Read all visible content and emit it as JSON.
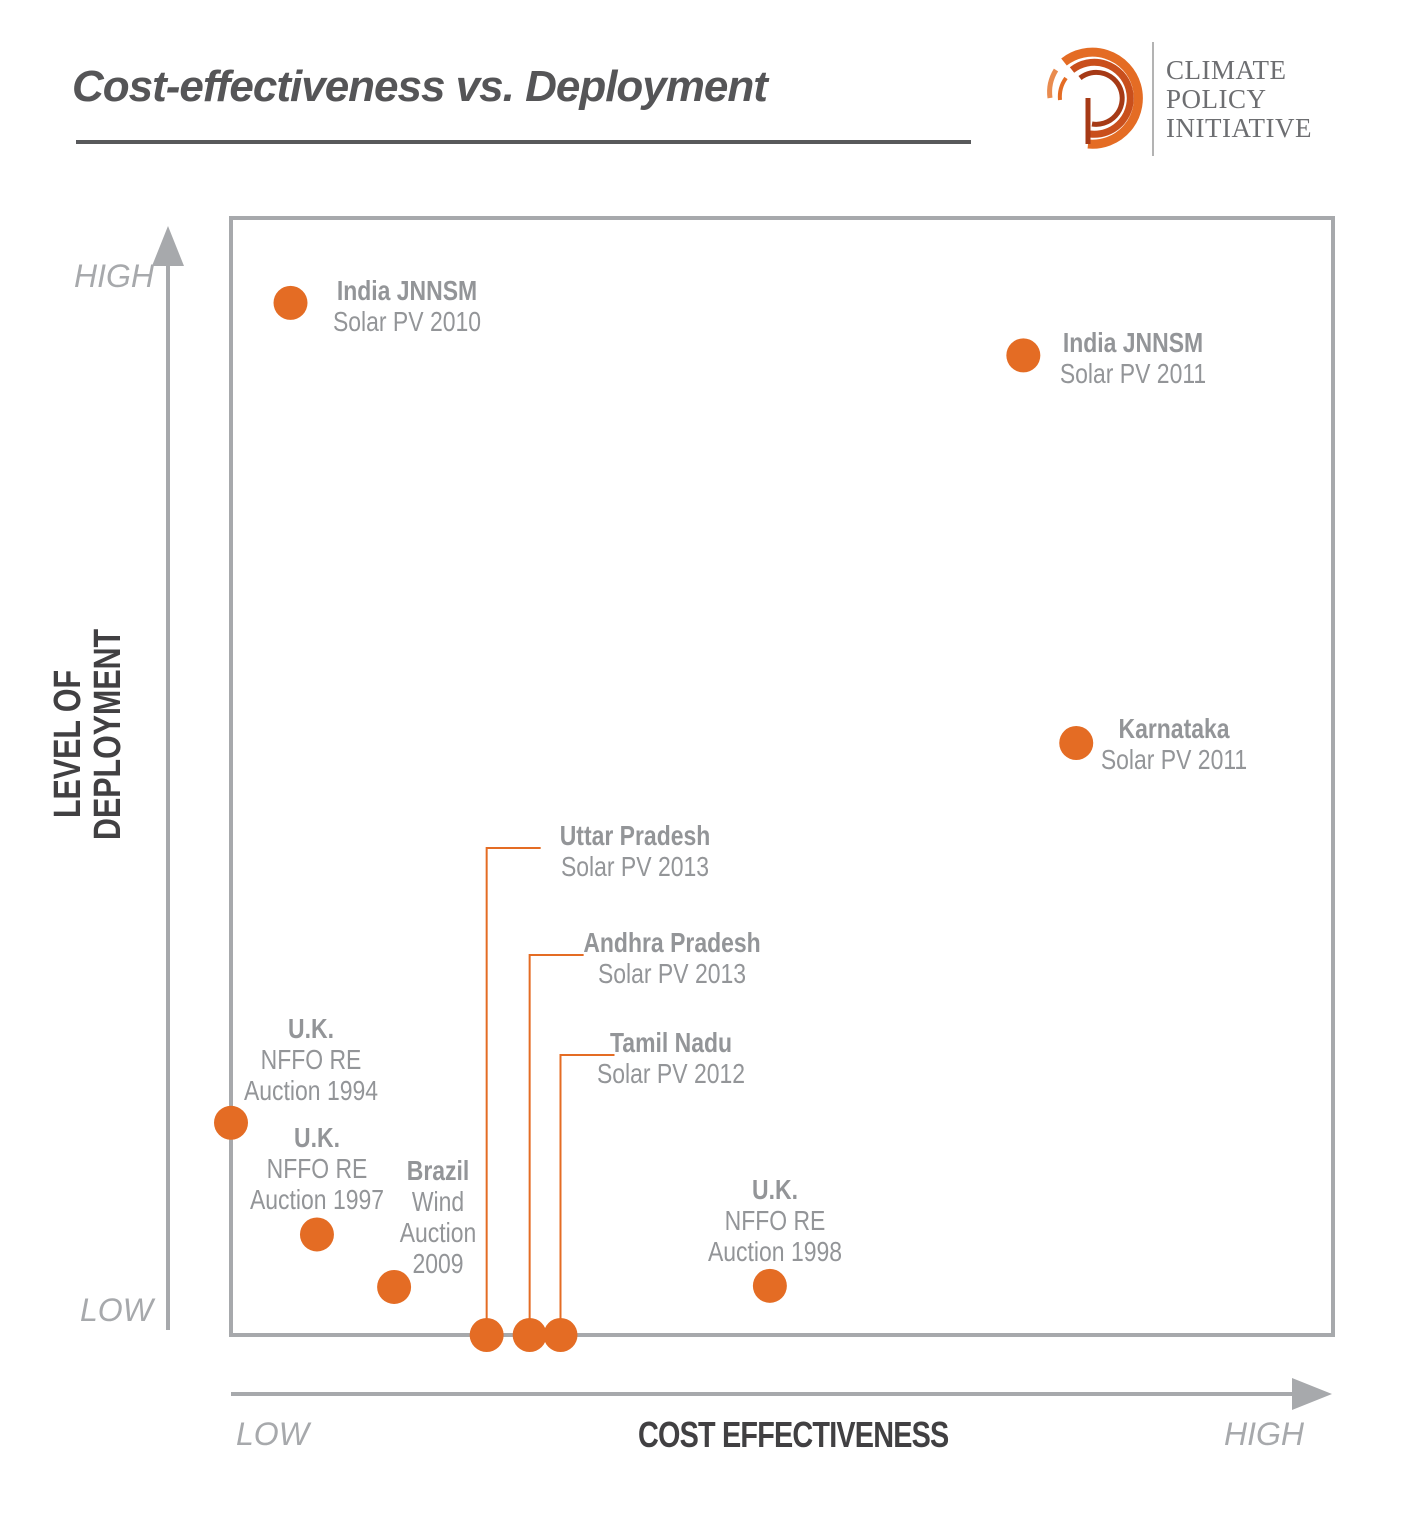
{
  "header": {
    "title": "Cost-effectiveness vs. Deployment"
  },
  "logo": {
    "lines": [
      "CLIMATE",
      "POLICY",
      "INITIATIVE"
    ]
  },
  "colors": {
    "marker": "#e46c24",
    "frame": "#a7a9ac",
    "axis_arrow": "#a7a9ac",
    "label_text": "#939598"
  },
  "chart_data": {
    "type": "scatter",
    "title": "Cost-effectiveness vs. Deployment",
    "xlabel": "COST EFFECTIVENESS",
    "ylabel": "LEVEL OF DEPLOYMENT",
    "x_low_label": "LOW",
    "x_high_label": "HIGH",
    "y_low_label": "LOW",
    "y_high_label": "HIGH",
    "xlim": [
      0,
      100
    ],
    "ylim": [
      0,
      100
    ],
    "grid": false,
    "points": [
      {
        "name": "India JNNSM",
        "sub": [
          "Solar PV 2010"
        ],
        "x": 5.4,
        "y": 92.4
      },
      {
        "name": "India JNNSM",
        "sub": [
          "Solar PV 2011"
        ],
        "x": 71.9,
        "y": 87.7
      },
      {
        "name": "Karnataka",
        "sub": [
          "Solar PV 2011"
        ],
        "x": 76.7,
        "y": 53.0
      },
      {
        "name": "Uttar Pradesh",
        "sub": [
          "Solar PV 2013"
        ],
        "x": 23.2,
        "y": 0.0
      },
      {
        "name": "Andhra Pradesh",
        "sub": [
          "Solar PV 2013"
        ],
        "x": 27.1,
        "y": 0.0
      },
      {
        "name": "Tamil Nadu",
        "sub": [
          "Solar PV 2012"
        ],
        "x": 29.9,
        "y": 0.0
      },
      {
        "name": "U.K.",
        "sub": [
          "NFFO RE",
          "Auction 1994"
        ],
        "x": 0.0,
        "y": 19.0
      },
      {
        "name": "U.K.",
        "sub": [
          "NFFO RE",
          "Auction 1997"
        ],
        "x": 7.8,
        "y": 9.0
      },
      {
        "name": "Brazil",
        "sub": [
          "Wind",
          "Auction",
          "2009"
        ],
        "x": 14.8,
        "y": 4.3
      },
      {
        "name": "U.K.",
        "sub": [
          "NFFO RE",
          "Auction 1998"
        ],
        "x": 48.9,
        "y": 4.4
      }
    ]
  }
}
